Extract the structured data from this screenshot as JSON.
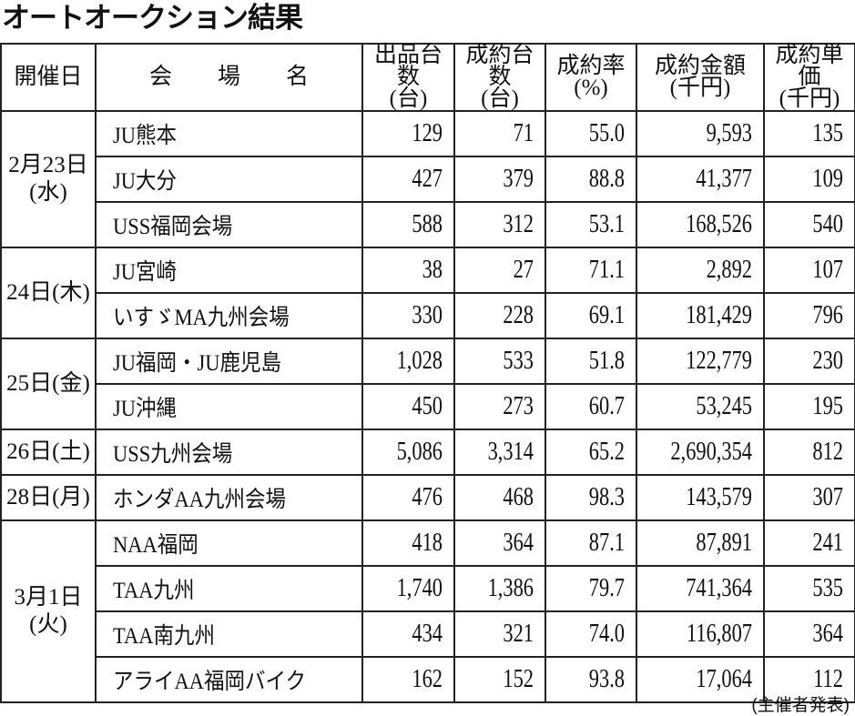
{
  "title": "オートオークション結果",
  "headers": [
    {
      "line1": "開催日",
      "line2": ""
    },
    {
      "line1": "会　　場　　名",
      "line2": ""
    },
    {
      "line1": "出品台数",
      "line2": "(台)"
    },
    {
      "line1": "成約台数",
      "line2": "(台)"
    },
    {
      "line1": "成約率",
      "line2": "(%)"
    },
    {
      "line1": "成約金額",
      "line2": "(千円)"
    },
    {
      "line1": "成約単価",
      "line2": "(千円)"
    }
  ],
  "groups": [
    {
      "date": "2月23日",
      "weekday": "(水)",
      "rows": [
        [
          "JU熊本",
          "129",
          "71",
          "55.0",
          "9,593",
          "135"
        ],
        [
          "JU大分",
          "427",
          "379",
          "88.8",
          "41,377",
          "109"
        ],
        [
          "USS福岡会場",
          "588",
          "312",
          "53.1",
          "168,526",
          "540"
        ]
      ]
    },
    {
      "date": "24日(木)",
      "weekday": "",
      "rows": [
        [
          "JU宮崎",
          "38",
          "27",
          "71.1",
          "2,892",
          "107"
        ],
        [
          "いすゞMA九州会場",
          "330",
          "228",
          "69.1",
          "181,429",
          "796"
        ]
      ]
    },
    {
      "date": "25日(金)",
      "weekday": "",
      "rows": [
        [
          "JU福岡・JU鹿児島",
          "1,028",
          "533",
          "51.8",
          "122,779",
          "230"
        ],
        [
          "JU沖縄",
          "450",
          "273",
          "60.7",
          "53,245",
          "195"
        ]
      ]
    },
    {
      "date": "26日(土)",
      "weekday": "",
      "rows": [
        [
          "USS九州会場",
          "5,086",
          "3,314",
          "65.2",
          "2,690,354",
          "812"
        ]
      ]
    },
    {
      "date": "28日(月)",
      "weekday": "",
      "rows": [
        [
          "ホンダAA九州会場",
          "476",
          "468",
          "98.3",
          "143,579",
          "307"
        ]
      ]
    },
    {
      "date": "3月1日",
      "weekday": "(火)",
      "rows": [
        [
          "NAA福岡",
          "418",
          "364",
          "87.1",
          "87,891",
          "241"
        ],
        [
          "TAA九州",
          "1,740",
          "1,386",
          "79.7",
          "741,364",
          "535"
        ],
        [
          "TAA南九州",
          "434",
          "321",
          "74.0",
          "116,807",
          "364"
        ],
        [
          "アライAA福岡バイク",
          "162",
          "152",
          "93.8",
          "17,064",
          "112"
        ]
      ]
    }
  ],
  "footer": "(主催者発表)"
}
